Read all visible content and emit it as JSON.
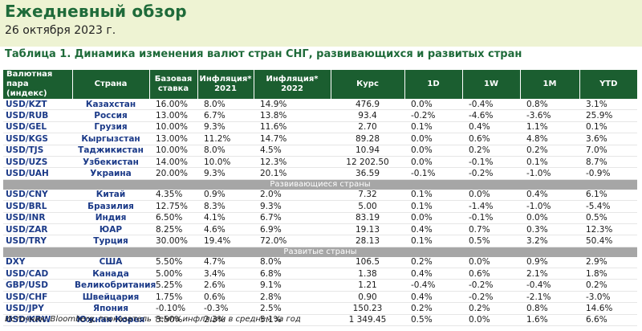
{
  "header": {
    "title": "Ежедневный обзор",
    "date": "26 октября 2023 г."
  },
  "table": {
    "caption": "Таблица 1. Динамика изменения валют стран СНГ, развивающихся и развитых стран",
    "columns": [
      "Валютная пара (индекс)",
      "Страна",
      "Базовая ставка",
      "Инфляция* 2021",
      "Инфляция* 2022",
      "Курс",
      "1D",
      "1W",
      "1M",
      "YTD"
    ],
    "sections": [
      {
        "label": "",
        "rows": [
          [
            "USD/KZT",
            "Казахстан",
            "16.00%",
            "8.0%",
            "14.9%",
            "476.9",
            "0.0%",
            "-0.4%",
            "0.8%",
            "3.1%"
          ],
          [
            "USD/RUB",
            "Россия",
            "13.00%",
            "6.7%",
            "13.8%",
            "93.4",
            "-0.2%",
            "-4.6%",
            "-3.6%",
            "25.9%"
          ],
          [
            "USD/GEL",
            "Грузия",
            "10.00%",
            "9.3%",
            "11.6%",
            "2.70",
            "0.1%",
            "0.4%",
            "1.1%",
            "0.1%"
          ],
          [
            "USD/KGS",
            "Кыргызстан",
            "13.00%",
            "11.2%",
            "14.7%",
            "89.28",
            "0.0%",
            "0.6%",
            "4.8%",
            "3.6%"
          ],
          [
            "USD/TJS",
            "Таджикистан",
            "10.00%",
            "8.0%",
            "4.5%",
            "10.94",
            "0.0%",
            "0.2%",
            "0.2%",
            "7.0%"
          ],
          [
            "USD/UZS",
            "Узбекистан",
            "14.00%",
            "10.0%",
            "12.3%",
            "12 202.50",
            "0.0%",
            "-0.1%",
            "0.1%",
            "8.7%"
          ],
          [
            "USD/UAH",
            "Украина",
            "20.00%",
            "9.3%",
            "20.1%",
            "36.59",
            "-0.1%",
            "-0.2%",
            "-1.0%",
            "-0.9%"
          ]
        ]
      },
      {
        "label": "Развивающиеся страны",
        "rows": [
          [
            "USD/CNY",
            "Китай",
            "4.35%",
            "0.9%",
            "2.0%",
            "7.32",
            "0.1%",
            "0.0%",
            "0.4%",
            "6.1%"
          ],
          [
            "USD/BRL",
            "Бразилия",
            "12.75%",
            "8.3%",
            "9.3%",
            "5.00",
            "0.1%",
            "-1.4%",
            "-1.0%",
            "-5.4%"
          ],
          [
            "USD/INR",
            "Индия",
            "6.50%",
            "4.1%",
            "6.7%",
            "83.19",
            "0.0%",
            "-0.1%",
            "0.0%",
            "0.5%"
          ],
          [
            "USD/ZAR",
            "ЮАР",
            "8.25%",
            "4.6%",
            "6.9%",
            "19.13",
            "0.4%",
            "0.7%",
            "0.3%",
            "12.3%"
          ],
          [
            "USD/TRY",
            "Турция",
            "30.00%",
            "19.4%",
            "72.0%",
            "28.13",
            "0.1%",
            "0.5%",
            "3.2%",
            "50.4%"
          ]
        ]
      },
      {
        "label": "Развитые страны",
        "rows": [
          [
            "DXY",
            "США",
            "5.50%",
            "4.7%",
            "8.0%",
            "106.5",
            "0.2%",
            "0.0%",
            "0.9%",
            "2.9%"
          ],
          [
            "USD/CAD",
            "Канада",
            "5.00%",
            "3.4%",
            "6.8%",
            "1.38",
            "0.4%",
            "0.6%",
            "2.1%",
            "1.8%"
          ],
          [
            "GBP/USD",
            "Великобритания",
            "5.25%",
            "2.6%",
            "9.1%",
            "1.21",
            "-0.4%",
            "-0.2%",
            "-0.4%",
            "0.2%"
          ],
          [
            "USD/CHF",
            "Швейцария",
            "1.75%",
            "0.6%",
            "2.8%",
            "0.90",
            "0.4%",
            "-0.2%",
            "-2.1%",
            "-3.0%"
          ],
          [
            "USD/JPY",
            "Япония",
            "-0.10%",
            "-0.3%",
            "2.5%",
            "150.23",
            "0.2%",
            "0.2%",
            "0.8%",
            "14.6%"
          ],
          [
            "USD/KRW",
            "Южная Корея",
            "3.50%",
            "2.3%",
            "5.1%",
            "1 349.45",
            "0.5%",
            "0.0%",
            "1.6%",
            "6.6%"
          ]
        ]
      }
    ]
  },
  "footer": {
    "note": "Источник: Bloomberg, *показатель темпа инфляции в среднем за год"
  }
}
